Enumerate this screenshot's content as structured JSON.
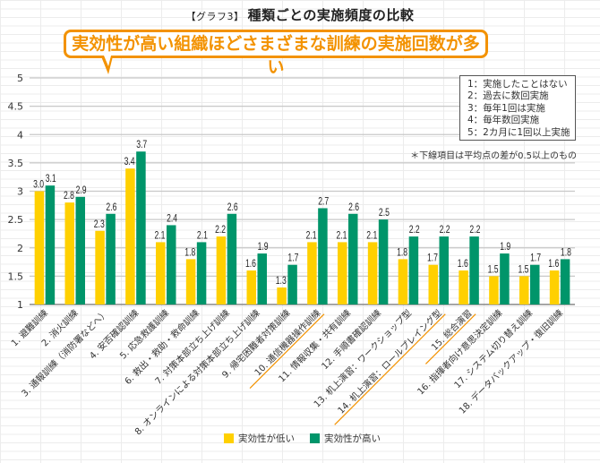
{
  "header": {
    "prefix": "【グラフ3】",
    "title": "種類ごとの実施頻度の比較"
  },
  "callout": {
    "text": "実効性が高い組織ほどさまざまな訓練の実施回数が多い",
    "color": "#f39200"
  },
  "scale_key": {
    "items": [
      "1：実施したことはない",
      "2：過去に数回実施",
      "3：毎年1回は実施",
      "4：毎年数回実施",
      "5：2カ月に1回以上実施"
    ]
  },
  "note": "＊下線項目は平均点の差が0.5以上のもの",
  "underline_color": "#f39200",
  "chart_data": {
    "type": "bar",
    "title": "種類ごとの実施頻度の比較",
    "xlabel": "",
    "ylabel": "",
    "ylim": [
      1,
      5
    ],
    "yticks": [
      1,
      1.5,
      2,
      2.5,
      3,
      3.5,
      4,
      4.5,
      5
    ],
    "ytick_labels": [
      "1",
      "1.5",
      "2",
      "2.5",
      "3",
      "3.5",
      "4",
      "4.5",
      "5"
    ],
    "grid": true,
    "legend_position": "bottom",
    "categories": [
      "1. 避難訓練",
      "2. 消火訓練",
      "3. 通報訓練（消防署などへ）",
      "4. 安否確認訓練",
      "5. 応急救護訓練",
      "6. 救出・救助・救命訓練",
      "7. 対策本部立ち上げ訓練",
      "8. オンラインによる対策本部立ち上げ訓練",
      "9. 帰宅困難者対策訓練",
      "10. 通信機器操作訓練",
      "11. 情報収集・共有訓練",
      "12. 手順書確認訓練",
      "13. 机上演習：ワークショップ型",
      "14. 机上演習：ロールプレイング型",
      "15. 総合演習",
      "16. 指揮者向け意思決定訓練",
      "17. システム切り替え訓練",
      "18. データバックアップ・復旧訓練"
    ],
    "underlined": [
      false,
      false,
      false,
      false,
      false,
      false,
      false,
      false,
      false,
      true,
      false,
      false,
      false,
      true,
      true,
      false,
      false,
      false
    ],
    "series": [
      {
        "name": "実効性が低い",
        "color": "#ffd000",
        "values": [
          3.0,
          2.8,
          2.3,
          3.4,
          2.1,
          1.8,
          2.2,
          1.6,
          1.3,
          2.1,
          2.1,
          2.1,
          1.8,
          1.7,
          1.6,
          1.5,
          1.5,
          1.6
        ],
        "labels": [
          "3.0",
          "2.8",
          "2.3",
          "3.4",
          "2.1",
          "1.8",
          "2.2",
          "1.6",
          "1.3",
          "2.1",
          "2.1",
          "2.1",
          "1.8",
          "1.7",
          "1.6",
          "1.5",
          "1.5",
          "1.6"
        ]
      },
      {
        "name": "実効性が高い",
        "color": "#00956a",
        "values": [
          3.1,
          2.9,
          2.6,
          3.7,
          2.4,
          2.1,
          2.6,
          1.9,
          1.7,
          2.7,
          2.6,
          2.5,
          2.2,
          2.2,
          2.2,
          1.9,
          1.7,
          1.8
        ],
        "labels": [
          "3.1",
          "2.9",
          "2.6",
          "3.7",
          "2.4",
          "2.1",
          "2.6",
          "1.9",
          "1.7",
          "2.7",
          "2.6",
          "2.5",
          "2.2",
          "2.2",
          "2.2",
          "1.9",
          "1.7",
          "1.8"
        ]
      }
    ]
  }
}
